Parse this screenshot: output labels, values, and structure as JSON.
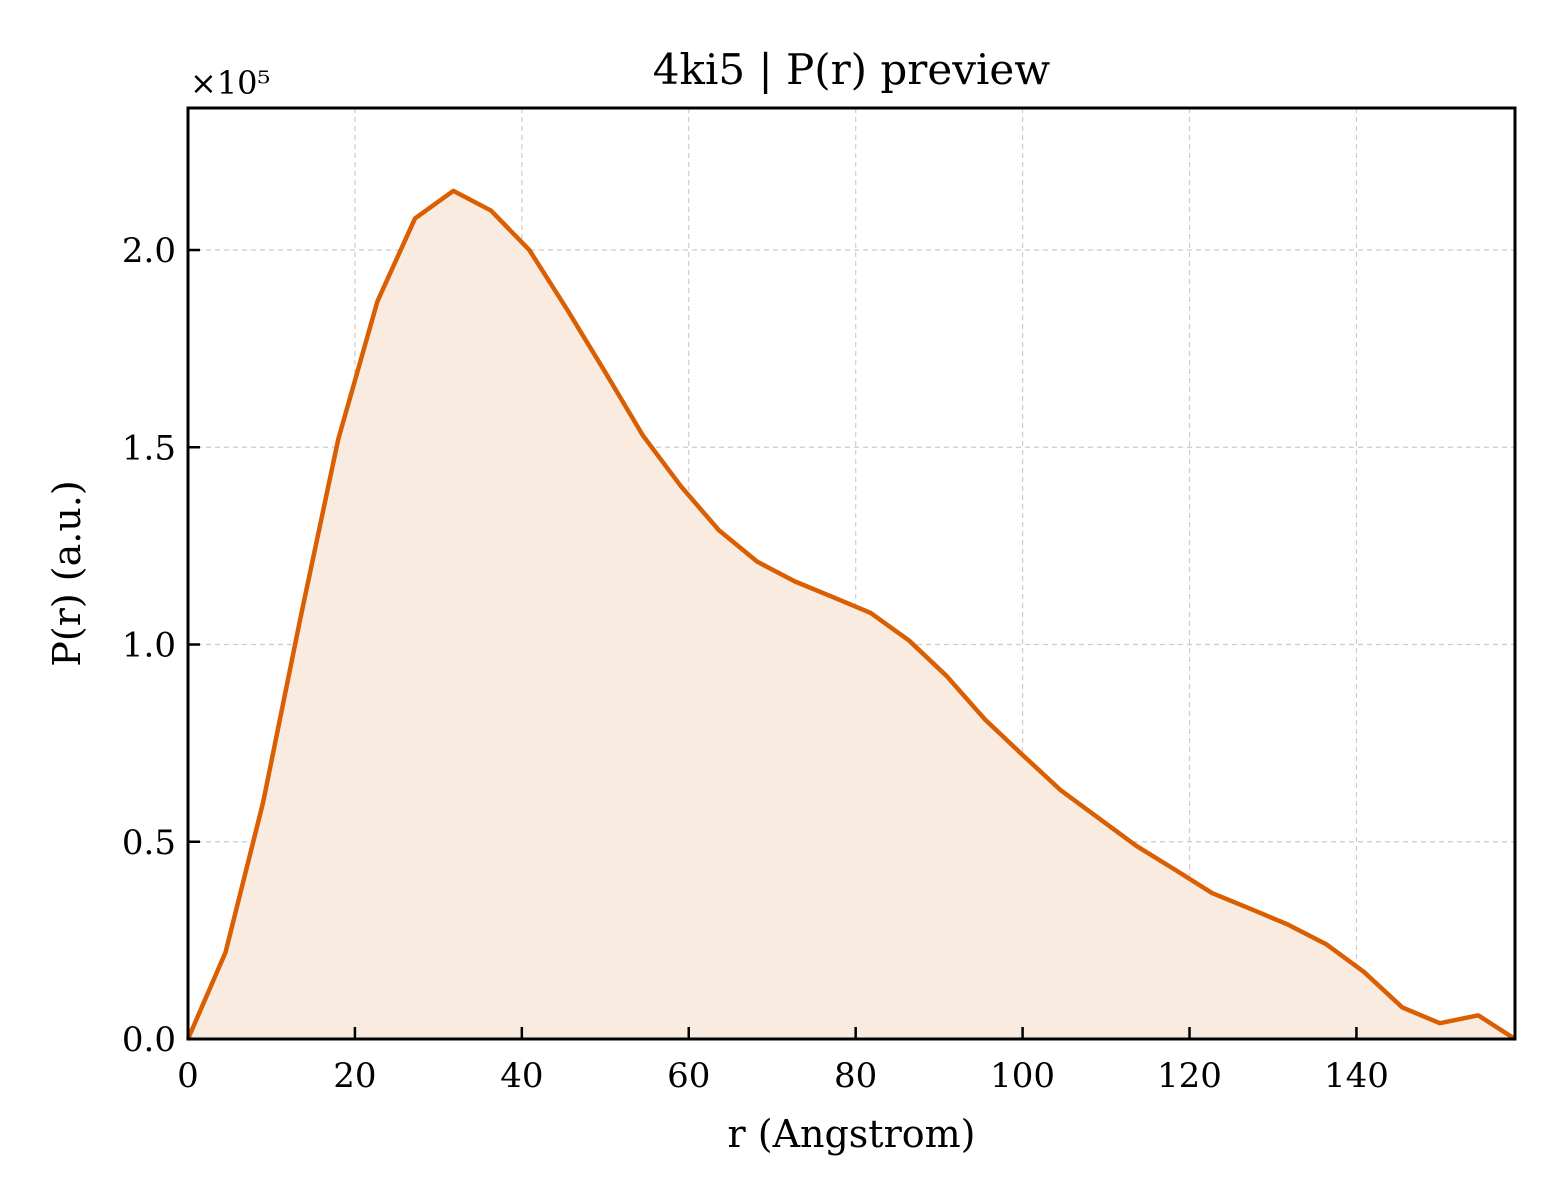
{
  "chart_data": {
    "type": "line",
    "title": "4ki5 | P(r) preview",
    "xlabel": "r (Angstrom)",
    "ylabel": "P(r) (a.u.)",
    "y_multiplier_label": "×10⁵",
    "y_scale_factor": 100000,
    "xlim": [
      0,
      159
    ],
    "ylim": [
      0,
      2.36
    ],
    "x_ticks": [
      0,
      20,
      40,
      60,
      80,
      100,
      120,
      140
    ],
    "y_ticks": [
      0.0,
      0.5,
      1.0,
      1.5,
      2.0
    ],
    "y_tick_labels": [
      "0.0",
      "0.5",
      "1.0",
      "1.5",
      "2.0"
    ],
    "grid": true,
    "line_color": "#d95f02",
    "fill_color": "#f9ebe0",
    "series": [
      {
        "x": [
          0,
          4.5,
          9,
          13.5,
          18,
          22.7,
          27.2,
          31.8,
          36.3,
          40.9,
          45.4,
          50,
          54.5,
          59.1,
          63.6,
          68.2,
          72.7,
          77.3,
          81.8,
          86.4,
          90.9,
          95.5,
          100,
          104.6,
          109.1,
          113.6,
          118.2,
          122.7,
          127.3,
          131.8,
          136.4,
          140.9,
          145.5,
          150,
          154.6,
          159
        ],
        "y": [
          0.0,
          0.22,
          0.6,
          1.07,
          1.52,
          1.87,
          2.08,
          2.15,
          2.1,
          2.0,
          1.85,
          1.69,
          1.53,
          1.4,
          1.29,
          1.21,
          1.16,
          1.12,
          1.08,
          1.01,
          0.92,
          0.81,
          0.72,
          0.63,
          0.56,
          0.49,
          0.43,
          0.37,
          0.33,
          0.29,
          0.24,
          0.17,
          0.08,
          0.04,
          0.06,
          0.0
        ]
      }
    ]
  }
}
